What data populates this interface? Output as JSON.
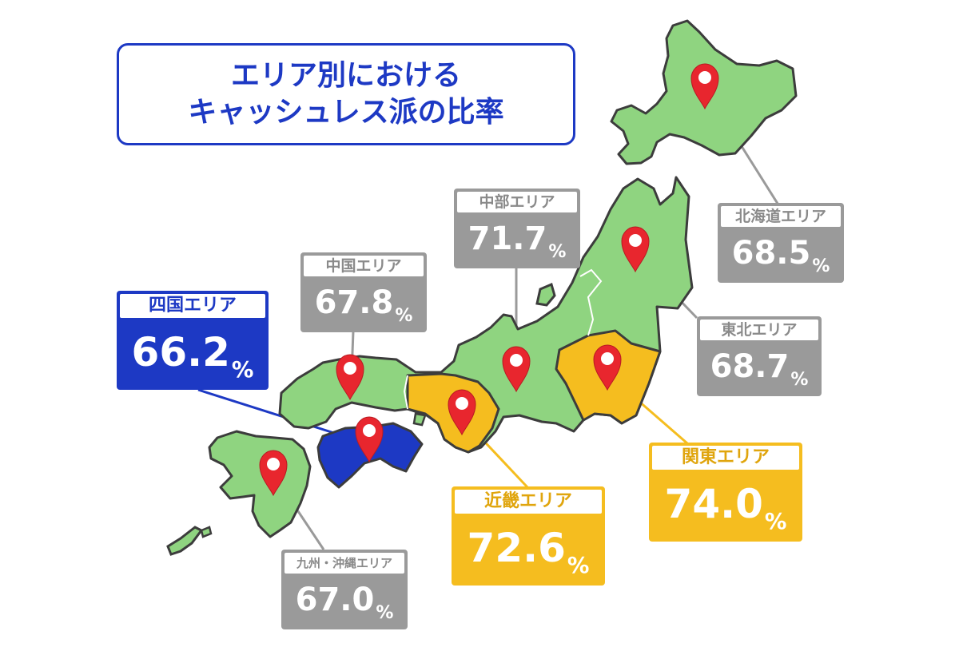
{
  "title": {
    "line1": "エリア別における",
    "line2": "キャッシュレス派の比率"
  },
  "colors": {
    "land_default": "#8fd480",
    "highlight_high": "#f5bd1f",
    "highlight_low": "#1d39c4",
    "label_default": "#9a9a9a",
    "pin": "#e8262e"
  },
  "regions": {
    "hokkaido": {
      "name": "北海道エリア",
      "value": "68.5",
      "unit": "%"
    },
    "tohoku": {
      "name": "東北エリア",
      "value": "68.7",
      "unit": "%"
    },
    "chubu": {
      "name": "中部エリア",
      "value": "71.7",
      "unit": "%"
    },
    "kanto": {
      "name": "関東エリア",
      "value": "74.0",
      "unit": "%"
    },
    "kinki": {
      "name": "近畿エリア",
      "value": "72.6",
      "unit": "%"
    },
    "chugoku": {
      "name": "中国エリア",
      "value": "67.8",
      "unit": "%"
    },
    "shikoku": {
      "name": "四国エリア",
      "value": "66.2",
      "unit": "%"
    },
    "kyushu": {
      "name": "九州・沖縄エリア",
      "value": "67.0",
      "unit": "%"
    }
  }
}
